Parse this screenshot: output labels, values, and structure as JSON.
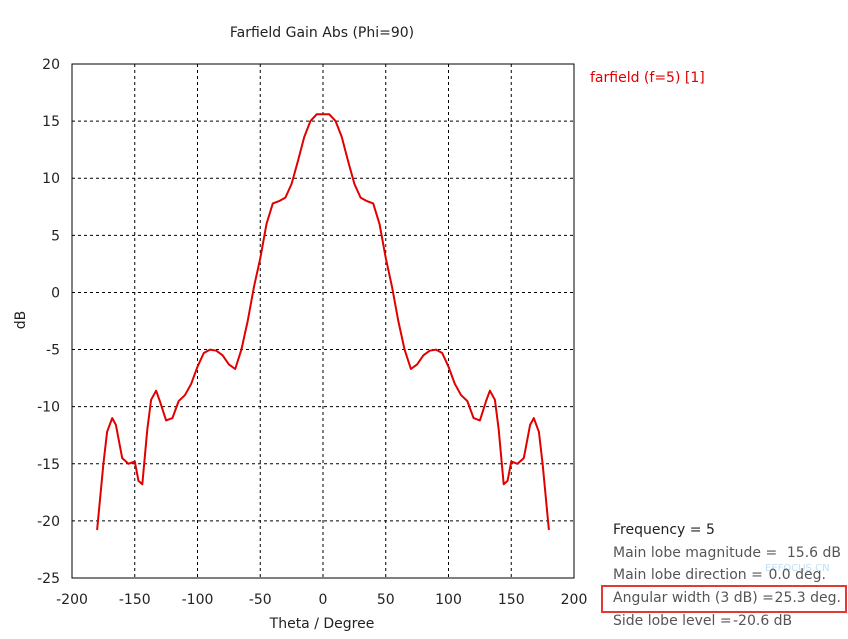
{
  "chart_data": {
    "type": "line",
    "title": "Farfield Gain Abs (Phi=90)",
    "xlabel": "Theta / Degree",
    "ylabel": "dB",
    "xlim": [
      -200,
      200
    ],
    "ylim": [
      -25,
      20
    ],
    "x_ticks": [
      -200,
      -150,
      -100,
      -50,
      0,
      50,
      100,
      150,
      200
    ],
    "y_ticks": [
      -25,
      -20,
      -15,
      -10,
      -5,
      0,
      5,
      10,
      15,
      20
    ],
    "grid": true,
    "legend_position": "top-right",
    "series": [
      {
        "name": "farfield (f=5) [1]",
        "color": "#e00000",
        "x": [
          -180,
          -175,
          -172,
          -168,
          -165,
          -160,
          -155,
          -150,
          -147,
          -144,
          -140,
          -137,
          -133,
          -130,
          -125,
          -120,
          -115,
          -110,
          -105,
          -100,
          -95,
          -90,
          -85,
          -80,
          -75,
          -70,
          -65,
          -60,
          -55,
          -50,
          -45,
          -40,
          -35,
          -30,
          -25,
          -20,
          -15,
          -10,
          -5,
          0,
          5,
          10,
          15,
          20,
          25,
          30,
          35,
          40,
          45,
          50,
          55,
          60,
          65,
          70,
          75,
          80,
          85,
          90,
          95,
          100,
          105,
          110,
          115,
          120,
          125,
          130,
          133,
          137,
          140,
          144,
          147,
          150,
          155,
          160,
          165,
          168,
          172,
          175,
          180
        ],
        "y": [
          -20.8,
          -15.0,
          -12.2,
          -11.0,
          -11.6,
          -14.5,
          -15.0,
          -14.8,
          -16.5,
          -16.8,
          -12.0,
          -9.4,
          -8.6,
          -9.5,
          -11.2,
          -11.0,
          -9.5,
          -9.0,
          -8.0,
          -6.5,
          -5.3,
          -5.0,
          -5.1,
          -5.5,
          -6.3,
          -6.7,
          -5.0,
          -2.5,
          0.5,
          3.0,
          6.0,
          7.8,
          8.0,
          8.3,
          9.5,
          11.5,
          13.6,
          15.0,
          15.6,
          15.6,
          15.6,
          15.0,
          13.6,
          11.5,
          9.5,
          8.3,
          8.0,
          7.8,
          6.0,
          3.0,
          0.5,
          -2.5,
          -5.0,
          -6.7,
          -6.3,
          -5.5,
          -5.1,
          -5.0,
          -5.3,
          -6.5,
          -8.0,
          -9.0,
          -9.5,
          -11.0,
          -11.2,
          -9.5,
          -8.6,
          -9.4,
          -12.0,
          -16.8,
          -16.5,
          -14.8,
          -15.0,
          -14.5,
          -11.6,
          -11.0,
          -12.2,
          -15.0,
          -20.8
        ]
      }
    ],
    "annotations": {
      "frequency_label": "Frequency = 5",
      "rows": [
        {
          "label": "Main lobe magnitude =",
          "value": "15.6 dB"
        },
        {
          "label": "Main lobe direction =",
          "value": "0.0 deg."
        },
        {
          "label": "Angular width (3 dB) =",
          "value": "25.3 deg."
        },
        {
          "label": "Side lobe level =",
          "value": "-20.6 dB"
        }
      ],
      "highlight_color": "#e53935"
    }
  },
  "watermark": {
    "text": "EEFOCUS.CN"
  },
  "colors": {
    "grid": "#000000",
    "axis": "#000000",
    "series": "#e00000"
  }
}
